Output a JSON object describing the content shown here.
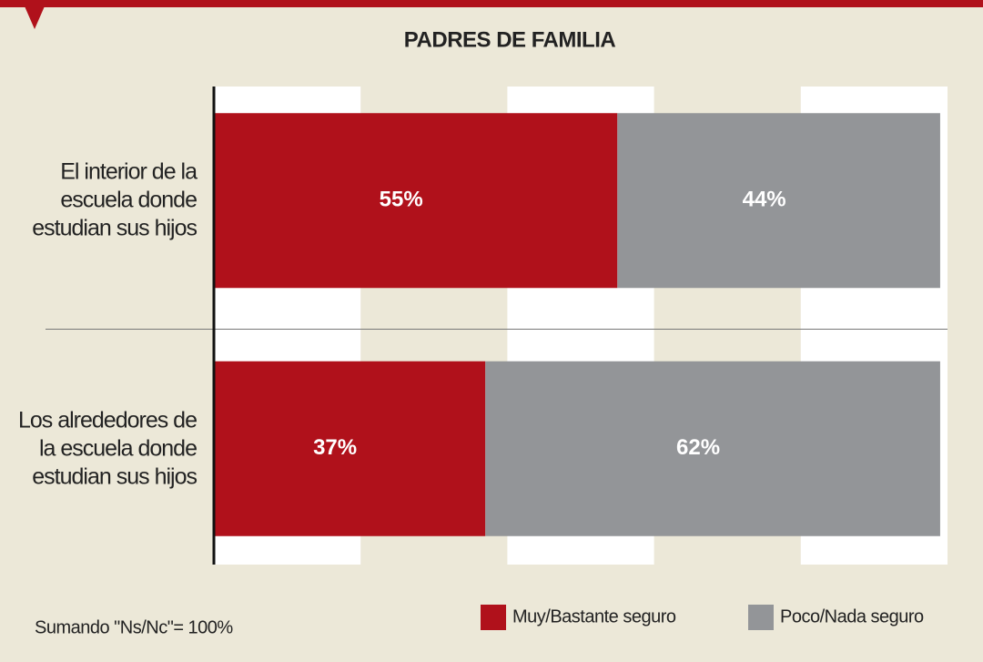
{
  "chart_data": {
    "type": "stacked_barh",
    "title": "PADRES DE FAMILIA",
    "categories": [
      "El interior de la escuela donde estudian sus hijos",
      "Los alrededores de la escuela donde estudian sus hijos"
    ],
    "series": [
      {
        "name": "Muy/Bastante seguro",
        "color": "#b0111b",
        "values": [
          55,
          37
        ],
        "value_labels": [
          "55%",
          "37%"
        ]
      },
      {
        "name": "Poco/Nada seguro",
        "color": "#939598",
        "values": [
          44,
          62
        ],
        "value_labels": [
          "44%",
          "62%"
        ]
      }
    ],
    "xlim": [
      0,
      100
    ],
    "xticks": [
      0,
      20,
      40,
      60,
      80,
      100
    ],
    "note": "Sumando \"Ns/Nc\"= 100%"
  }
}
